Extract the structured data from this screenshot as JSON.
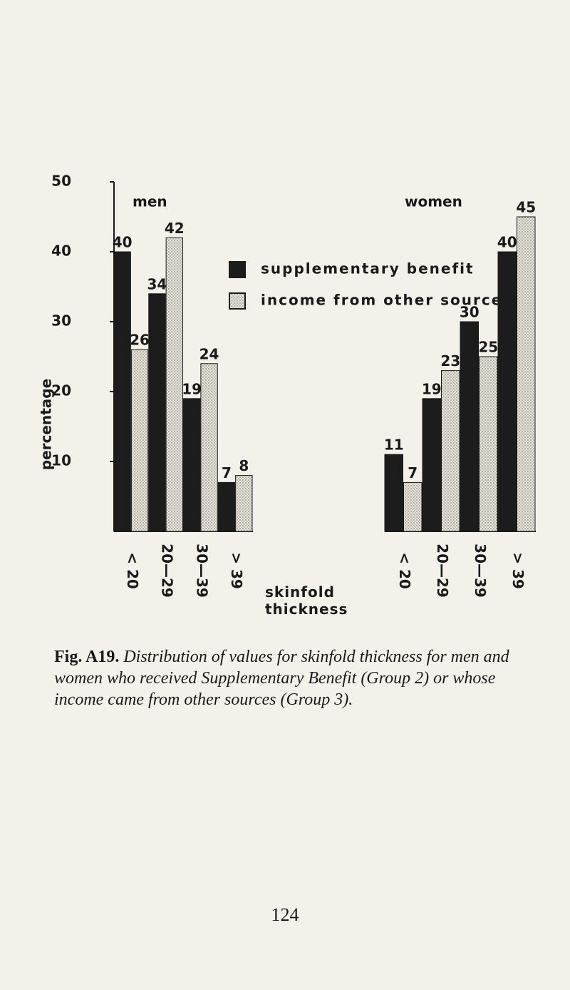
{
  "chart_data": [
    {
      "type": "bar",
      "title": "men",
      "categories": [
        "< 20",
        "20—29",
        "30—39",
        "> 39"
      ],
      "series": [
        {
          "name": "supplementary benefit",
          "color": "#1c1c1c",
          "values": [
            40,
            34,
            19,
            7
          ]
        },
        {
          "name": "income from other sources",
          "color": "#d8d4c4",
          "values": [
            26,
            42,
            24,
            8
          ]
        }
      ],
      "ylabel": "percentage",
      "xlabel": "skinfold thickness",
      "ylim": [
        0,
        50
      ],
      "yticks": [
        10,
        20,
        30,
        40,
        50
      ]
    },
    {
      "type": "bar",
      "title": "women",
      "categories": [
        "< 20",
        "20—29",
        "30—39",
        "> 39"
      ],
      "series": [
        {
          "color": "#1c1c1c",
          "values": [
            11,
            19,
            30,
            40
          ]
        },
        {
          "color": "#d8d4c4",
          "values": [
            7,
            23,
            25,
            45
          ]
        }
      ],
      "ylim": [
        0,
        50
      ]
    }
  ],
  "caption_label": "Fig. A19.",
  "caption_text": "Distribution of values for skinfold thickness for men and women who received Supplementary Benefit (Group 2) or whose income came from other sources (Group 3).",
  "page_number": "124"
}
